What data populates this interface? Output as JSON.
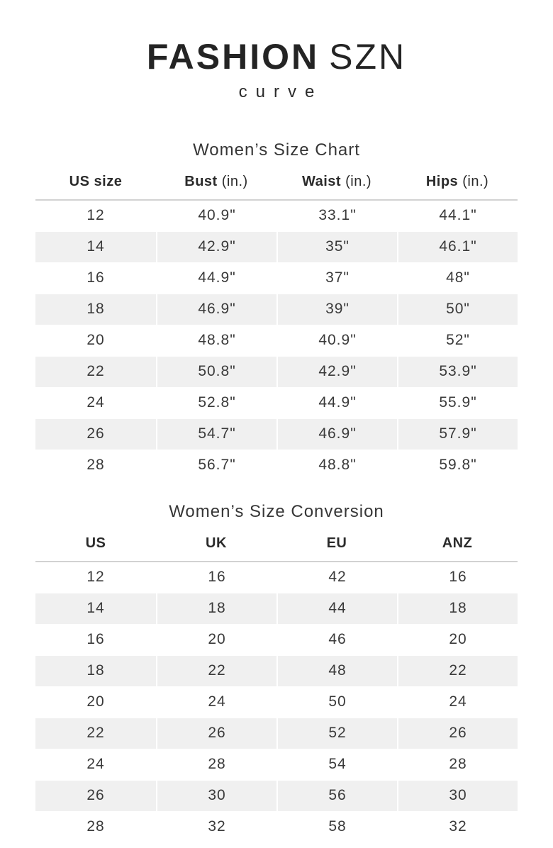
{
  "brand": {
    "name_primary": "FASHION",
    "name_secondary": "SZN",
    "tagline": "curve"
  },
  "size_chart": {
    "title": "Women’s Size Chart",
    "columns": [
      {
        "label": "US size",
        "unit": ""
      },
      {
        "label": "Bust",
        "unit": "(in.)"
      },
      {
        "label": "Waist",
        "unit": "(in.)"
      },
      {
        "label": "Hips",
        "unit": "(in.)"
      }
    ],
    "rows": [
      [
        "12",
        "40.9\"",
        "33.1\"",
        "44.1\""
      ],
      [
        "14",
        "42.9\"",
        "35\"",
        "46.1\""
      ],
      [
        "16",
        "44.9\"",
        "37\"",
        "48\""
      ],
      [
        "18",
        "46.9\"",
        "39\"",
        "50\""
      ],
      [
        "20",
        "48.8\"",
        "40.9\"",
        "52\""
      ],
      [
        "22",
        "50.8\"",
        "42.9\"",
        "53.9\""
      ],
      [
        "24",
        "52.8\"",
        "44.9\"",
        "55.9\""
      ],
      [
        "26",
        "54.7\"",
        "46.9\"",
        "57.9\""
      ],
      [
        "28",
        "56.7\"",
        "48.8\"",
        "59.8\""
      ]
    ]
  },
  "conversion_chart": {
    "title": "Women’s Size Conversion",
    "columns": [
      {
        "label": "US",
        "unit": ""
      },
      {
        "label": "UK",
        "unit": ""
      },
      {
        "label": "EU",
        "unit": ""
      },
      {
        "label": "ANZ",
        "unit": ""
      }
    ],
    "rows": [
      [
        "12",
        "16",
        "42",
        "16"
      ],
      [
        "14",
        "18",
        "44",
        "18"
      ],
      [
        "16",
        "20",
        "46",
        "20"
      ],
      [
        "18",
        "22",
        "48",
        "22"
      ],
      [
        "20",
        "24",
        "50",
        "24"
      ],
      [
        "22",
        "26",
        "52",
        "26"
      ],
      [
        "24",
        "28",
        "54",
        "28"
      ],
      [
        "26",
        "30",
        "56",
        "30"
      ],
      [
        "28",
        "32",
        "58",
        "32"
      ]
    ]
  },
  "colors": {
    "stripe": "#f0f0f0",
    "header_rule": "#d2d2d2",
    "text": "#2f2f2f"
  }
}
